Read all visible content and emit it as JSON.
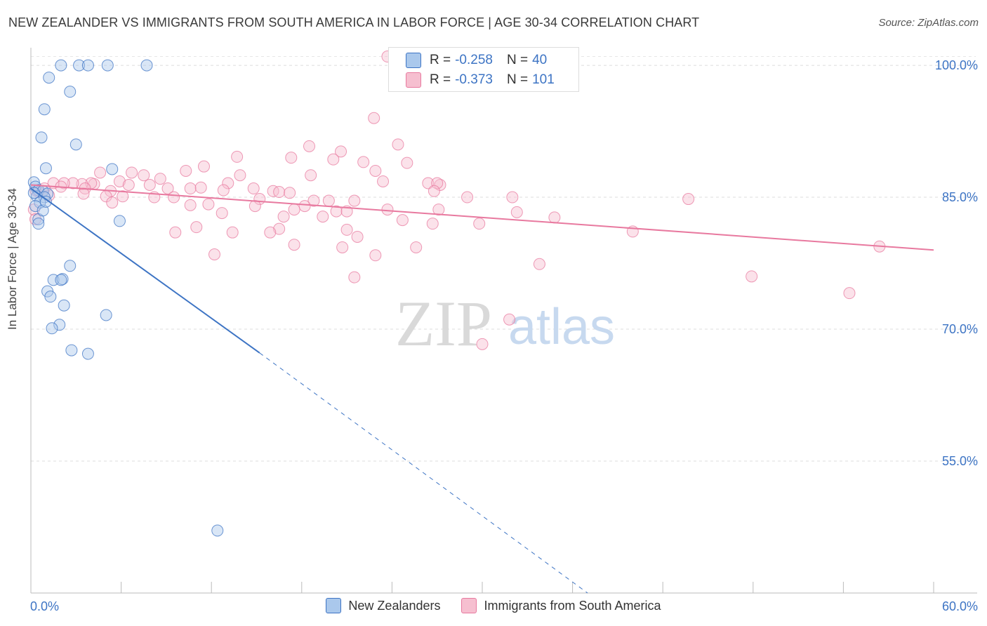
{
  "header": {
    "title": "NEW ZEALANDER VS IMMIGRANTS FROM SOUTH AMERICA IN LABOR FORCE | AGE 30-34 CORRELATION CHART",
    "source": "Source: ZipAtlas.com"
  },
  "watermark": {
    "zip": "ZIP",
    "atlas": "atlas"
  },
  "colors": {
    "blue": "#3d74c4",
    "blue_fill": "#aac8ec",
    "pink": "#e8799f",
    "pink_fill": "#f6bfd0",
    "axis_text": "#3d74c4"
  },
  "correlation_box": {
    "rows": [
      {
        "r_label": "R =",
        "r_value": "-0.258",
        "n_label": "N =",
        "n_value": "40"
      },
      {
        "r_label": "R =",
        "r_value": "-0.373",
        "n_label": "N =",
        "n_value": "101"
      }
    ]
  },
  "chart_data": {
    "type": "scatter",
    "title": "NEW ZEALANDER VS IMMIGRANTS FROM SOUTH AMERICA IN LABOR FORCE | AGE 30-34 CORRELATION CHART",
    "xlabel": "",
    "ylabel": "In Labor Force | Age 30-34",
    "xlim": [
      0,
      60
    ],
    "ylim": [
      40,
      102
    ],
    "x_tick_labels": [
      "0.0%",
      "60.0%"
    ],
    "y_ticks": [
      55,
      70,
      85,
      100
    ],
    "y_tick_labels": [
      "55.0%",
      "70.0%",
      "85.0%",
      "100.0%"
    ],
    "grid": true,
    "legend_position": "bottom",
    "series": [
      {
        "name": "New Zealanders",
        "color": "#3d74c4",
        "fill": "#aac8ec",
        "trend": {
          "x1": 0,
          "y1": 86.0,
          "x2": 15.2,
          "y2": 67.3,
          "dashed_to_x": 37,
          "dashed_to_y": 40
        },
        "points": [
          [
            2.0,
            100.0
          ],
          [
            3.2,
            100.0
          ],
          [
            3.8,
            100.0
          ],
          [
            5.1,
            100.0
          ],
          [
            7.7,
            100.0
          ],
          [
            1.2,
            98.6
          ],
          [
            2.6,
            97.0
          ],
          [
            0.9,
            95.0
          ],
          [
            0.7,
            91.8
          ],
          [
            3.0,
            91.0
          ],
          [
            1.0,
            88.3
          ],
          [
            5.4,
            88.2
          ],
          [
            0.2,
            86.7
          ],
          [
            0.3,
            86.2
          ],
          [
            0.5,
            85.8
          ],
          [
            0.8,
            85.7
          ],
          [
            1.1,
            85.4
          ],
          [
            0.4,
            85.1
          ],
          [
            0.9,
            85.0
          ],
          [
            0.6,
            84.4
          ],
          [
            0.3,
            84.0
          ],
          [
            0.5,
            82.5
          ],
          [
            5.9,
            82.3
          ],
          [
            0.5,
            82.0
          ],
          [
            2.6,
            77.2
          ],
          [
            1.5,
            75.6
          ],
          [
            2.1,
            75.7
          ],
          [
            2.0,
            75.6
          ],
          [
            1.1,
            74.3
          ],
          [
            1.3,
            73.7
          ],
          [
            2.2,
            72.7
          ],
          [
            5.0,
            71.6
          ],
          [
            1.9,
            70.5
          ],
          [
            1.4,
            70.1
          ],
          [
            2.7,
            67.6
          ],
          [
            3.8,
            67.2
          ],
          [
            12.4,
            47.1
          ],
          [
            0.8,
            83.5
          ],
          [
            1.0,
            84.5
          ],
          [
            0.2,
            85.5
          ]
        ]
      },
      {
        "name": "Immigrants from South America",
        "color": "#e8799f",
        "fill": "#f6bfd0",
        "trend": {
          "x1": 0,
          "y1": 86.4,
          "x2": 60,
          "y2": 79.0
        },
        "points": [
          [
            23.7,
            101.0
          ],
          [
            22.8,
            94.0
          ],
          [
            24.4,
            91.0
          ],
          [
            18.5,
            90.8
          ],
          [
            20.6,
            90.2
          ],
          [
            13.7,
            89.6
          ],
          [
            17.3,
            89.5
          ],
          [
            20.1,
            89.3
          ],
          [
            25.0,
            88.9
          ],
          [
            22.1,
            89.0
          ],
          [
            11.5,
            88.5
          ],
          [
            22.9,
            88.0
          ],
          [
            10.3,
            88.0
          ],
          [
            13.9,
            87.5
          ],
          [
            18.6,
            87.5
          ],
          [
            4.6,
            87.8
          ],
          [
            6.7,
            87.8
          ],
          [
            7.5,
            87.5
          ],
          [
            23.4,
            86.8
          ],
          [
            8.6,
            87.1
          ],
          [
            5.9,
            86.8
          ],
          [
            13.1,
            86.6
          ],
          [
            26.4,
            86.6
          ],
          [
            27.2,
            86.4
          ],
          [
            27.0,
            86.6
          ],
          [
            4.2,
            86.5
          ],
          [
            4.0,
            86.6
          ],
          [
            3.4,
            86.5
          ],
          [
            2.8,
            86.6
          ],
          [
            2.2,
            86.6
          ],
          [
            1.5,
            86.6
          ],
          [
            6.5,
            86.4
          ],
          [
            7.9,
            86.4
          ],
          [
            9.1,
            86.0
          ],
          [
            10.6,
            86.0
          ],
          [
            11.3,
            86.1
          ],
          [
            14.8,
            86.0
          ],
          [
            16.1,
            85.7
          ],
          [
            16.5,
            85.6
          ],
          [
            17.2,
            85.5
          ],
          [
            12.8,
            85.8
          ],
          [
            5.3,
            85.7
          ],
          [
            3.6,
            86.0
          ],
          [
            2.0,
            86.2
          ],
          [
            0.9,
            86.0
          ],
          [
            0.5,
            85.6
          ],
          [
            1.2,
            85.2
          ],
          [
            3.5,
            85.4
          ],
          [
            5.0,
            85.1
          ],
          [
            6.1,
            85.1
          ],
          [
            8.2,
            85.0
          ],
          [
            9.5,
            85.0
          ],
          [
            15.2,
            84.8
          ],
          [
            18.8,
            84.6
          ],
          [
            19.8,
            84.6
          ],
          [
            21.5,
            84.6
          ],
          [
            26.8,
            85.7
          ],
          [
            29.0,
            85.0
          ],
          [
            32.0,
            85.0
          ],
          [
            43.7,
            84.8
          ],
          [
            5.4,
            84.4
          ],
          [
            10.6,
            84.1
          ],
          [
            11.8,
            84.2
          ],
          [
            14.9,
            84.0
          ],
          [
            18.2,
            84.0
          ],
          [
            17.5,
            83.6
          ],
          [
            20.3,
            83.4
          ],
          [
            21.0,
            83.4
          ],
          [
            23.7,
            83.6
          ],
          [
            27.1,
            83.6
          ],
          [
            32.3,
            83.3
          ],
          [
            12.7,
            83.2
          ],
          [
            16.8,
            82.8
          ],
          [
            19.4,
            82.8
          ],
          [
            24.7,
            82.4
          ],
          [
            26.7,
            82.0
          ],
          [
            29.8,
            82.0
          ],
          [
            34.8,
            82.7
          ],
          [
            16.5,
            81.4
          ],
          [
            11.0,
            81.6
          ],
          [
            13.4,
            81.0
          ],
          [
            9.6,
            81.0
          ],
          [
            15.9,
            81.0
          ],
          [
            21.0,
            81.3
          ],
          [
            21.7,
            80.5
          ],
          [
            40.0,
            81.1
          ],
          [
            17.5,
            79.6
          ],
          [
            20.7,
            79.3
          ],
          [
            25.6,
            79.3
          ],
          [
            56.4,
            79.4
          ],
          [
            12.2,
            78.5
          ],
          [
            22.9,
            78.4
          ],
          [
            33.8,
            77.4
          ],
          [
            47.9,
            76.0
          ],
          [
            21.5,
            75.9
          ],
          [
            54.4,
            74.1
          ],
          [
            31.8,
            71.1
          ],
          [
            30.0,
            68.3
          ],
          [
            0.2,
            83.6
          ],
          [
            0.3,
            82.5
          ],
          [
            0.3,
            85.8
          ]
        ]
      }
    ]
  }
}
